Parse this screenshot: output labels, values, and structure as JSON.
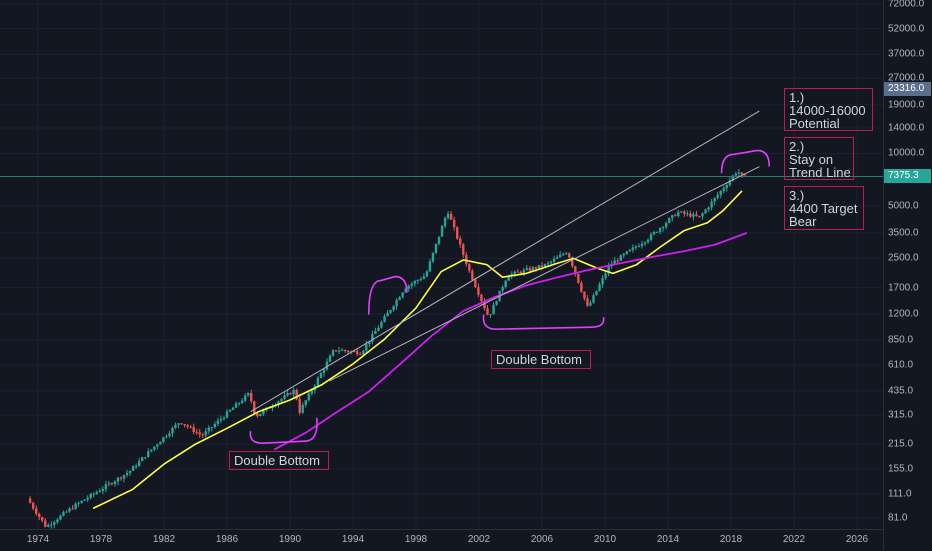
{
  "chart_data": {
    "type": "candlestick",
    "scale": "log",
    "price_axis_labels": [
      "72000.0",
      "52000.0",
      "37000.0",
      "27000.0",
      "19000.0",
      "14000.0",
      "10000.0",
      "5000.0",
      "3500.0",
      "2500.0",
      "1700.0",
      "1200.0",
      "850.0",
      "610.0",
      "435.0",
      "315.0",
      "215.0",
      "155.0",
      "111.0",
      "81.0"
    ],
    "price_axis_values": [
      72000,
      52000,
      37000,
      27000,
      19000,
      14000,
      10000,
      5000,
      3500,
      2500,
      1700,
      1200,
      850,
      610,
      435,
      315,
      215,
      155,
      111,
      81
    ],
    "time_axis_labels": [
      "1974",
      "1978",
      "1982",
      "1986",
      "1990",
      "1994",
      "1998",
      "2002",
      "2006",
      "2010",
      "2014",
      "2018",
      "2022",
      "2026"
    ],
    "time_axis_values": [
      1974,
      1978,
      1982,
      1986,
      1990,
      1994,
      1998,
      2002,
      2006,
      2010,
      2014,
      2018,
      2022,
      2026
    ],
    "price_badges": [
      {
        "label": "23316.0",
        "value": 23316,
        "color": "#5b6e8e"
      },
      {
        "label": "7375.3",
        "value": 7375.3,
        "color": "#26a69a"
      }
    ],
    "anchor_prices": [
      {
        "year": 1973.5,
        "price": 105
      },
      {
        "year": 1974.7,
        "price": 72
      },
      {
        "year": 1976.5,
        "price": 95
      },
      {
        "year": 1980,
        "price": 150
      },
      {
        "year": 1981.5,
        "price": 205
      },
      {
        "year": 1983.2,
        "price": 290
      },
      {
        "year": 1984.6,
        "price": 240
      },
      {
        "year": 1987.6,
        "price": 420
      },
      {
        "year": 1988,
        "price": 310
      },
      {
        "year": 1990.5,
        "price": 440
      },
      {
        "year": 1990.8,
        "price": 330
      },
      {
        "year": 1993,
        "price": 750
      },
      {
        "year": 1994.7,
        "price": 720
      },
      {
        "year": 1997.5,
        "price": 1700
      },
      {
        "year": 1998.8,
        "price": 2000
      },
      {
        "year": 2000.2,
        "price": 4700
      },
      {
        "year": 2001.5,
        "price": 2200
      },
      {
        "year": 2002.8,
        "price": 1150
      },
      {
        "year": 2004,
        "price": 2000
      },
      {
        "year": 2006.5,
        "price": 2300
      },
      {
        "year": 2007.8,
        "price": 2750
      },
      {
        "year": 2009.1,
        "price": 1300
      },
      {
        "year": 2010.5,
        "price": 2300
      },
      {
        "year": 2013,
        "price": 3300
      },
      {
        "year": 2014.8,
        "price": 4600
      },
      {
        "year": 2016.2,
        "price": 4300
      },
      {
        "year": 2018.6,
        "price": 8000
      },
      {
        "year": 2018.9,
        "price": 7375
      }
    ],
    "ma_yellow": [
      {
        "year": 1977.5,
        "price": 92
      },
      {
        "year": 1980,
        "price": 118
      },
      {
        "year": 1982,
        "price": 165
      },
      {
        "year": 1984,
        "price": 215
      },
      {
        "year": 1986,
        "price": 265
      },
      {
        "year": 1988,
        "price": 330
      },
      {
        "year": 1990,
        "price": 385
      },
      {
        "year": 1992,
        "price": 470
      },
      {
        "year": 1994,
        "price": 620
      },
      {
        "year": 1996,
        "price": 860
      },
      {
        "year": 1998,
        "price": 1300
      },
      {
        "year": 1999.6,
        "price": 2100
      },
      {
        "year": 2001,
        "price": 2450
      },
      {
        "year": 2002.5,
        "price": 2300
      },
      {
        "year": 2003.5,
        "price": 1950
      },
      {
        "year": 2005,
        "price": 2050
      },
      {
        "year": 2007,
        "price": 2350
      },
      {
        "year": 2008,
        "price": 2500
      },
      {
        "year": 2009.5,
        "price": 2200
      },
      {
        "year": 2010.5,
        "price": 2050
      },
      {
        "year": 2012,
        "price": 2300
      },
      {
        "year": 2013.5,
        "price": 2900
      },
      {
        "year": 2015,
        "price": 3600
      },
      {
        "year": 2016.5,
        "price": 4000
      },
      {
        "year": 2017.5,
        "price": 4700
      },
      {
        "year": 2018.7,
        "price": 6100
      }
    ],
    "ma_purple": [
      {
        "year": 1989,
        "price": 200
      },
      {
        "year": 1991,
        "price": 250
      },
      {
        "year": 1993,
        "price": 330
      },
      {
        "year": 1995,
        "price": 430
      },
      {
        "year": 1997,
        "price": 620
      },
      {
        "year": 1999,
        "price": 900
      },
      {
        "year": 2001,
        "price": 1250
      },
      {
        "year": 2003,
        "price": 1500
      },
      {
        "year": 2005,
        "price": 1750
      },
      {
        "year": 2007,
        "price": 1950
      },
      {
        "year": 2009,
        "price": 2150
      },
      {
        "year": 2011,
        "price": 2350
      },
      {
        "year": 2013,
        "price": 2550
      },
      {
        "year": 2015,
        "price": 2750
      },
      {
        "year": 2017,
        "price": 3000
      },
      {
        "year": 2019,
        "price": 3500
      }
    ],
    "trend_lines": [
      {
        "from": {
          "year": 1987.5,
          "price": 330
        },
        "to": {
          "year": 2019.8,
          "price": 17500
        }
      },
      {
        "from": {
          "year": 1992.5,
          "price": 495
        },
        "to": {
          "year": 2019.8,
          "price": 8400
        }
      }
    ],
    "horizontal_line_price": 7375.3,
    "bracket_lows_1": {
      "from": {
        "year": 1987.5,
        "price": 255
      },
      "to": {
        "year": 1991.7,
        "price": 305
      }
    },
    "bracket_lows_2": {
      "from": {
        "year": 2002.3,
        "price": 1190
      },
      "to": {
        "year": 2009.9,
        "price": 1150
      }
    },
    "bracket_tops_1": {
      "from": {
        "year": 1995,
        "price": 1190
      },
      "to": {
        "year": 1997.3,
        "price": 1550
      }
    },
    "bracket_tops_2": {
      "from": {
        "year": 2017.4,
        "price": 7700
      },
      "to": {
        "year": 2020.3,
        "price": 8200
      }
    },
    "colors": {
      "up": "#26a69a",
      "down": "#ef5350",
      "ma_yellow": "#ffff3b",
      "ma_purple": "#cc20ee",
      "trend": "#b2b5be",
      "annotation": "#e040fb",
      "box_border": "#c2185b"
    }
  },
  "annotations": [
    {
      "id": "note-1",
      "text": "1.)\n14000-16000\nPotential"
    },
    {
      "id": "note-2",
      "text": "2.)\nStay on\nTrend Line"
    },
    {
      "id": "note-3",
      "text": "3.)\n4400 Target\nBear"
    },
    {
      "id": "note-db1",
      "text": "Double Bottom"
    },
    {
      "id": "note-db2",
      "text": "Double Bottom"
    }
  ]
}
